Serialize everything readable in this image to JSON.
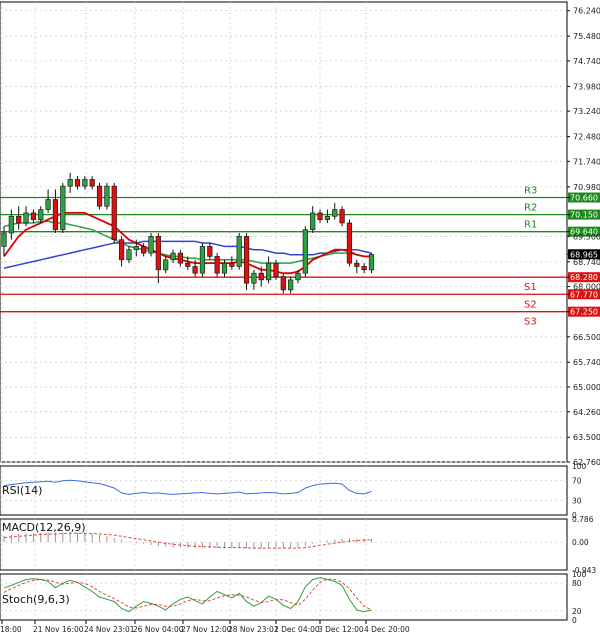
{
  "chart_data": {
    "type": "candlestick",
    "main_panel": {
      "ylim": [
        62.76,
        76.5
      ],
      "y_ticks": [
        "76.240",
        "75.480",
        "74.740",
        "73.980",
        "73.240",
        "72.480",
        "71.740",
        "70.980",
        "70.660",
        "70.150",
        "69.640",
        "69.500",
        "68.965",
        "68.740",
        "68.280",
        "68.000",
        "67.770",
        "67.250",
        "66.500",
        "65.740",
        "65.000",
        "64.260",
        "63.500",
        "62.760"
      ],
      "last_price": 68.965,
      "levels": [
        {
          "label": "R3",
          "value": 70.66,
          "kind": "resistance"
        },
        {
          "label": "R2",
          "value": 70.15,
          "kind": "resistance"
        },
        {
          "label": "R1",
          "value": 69.64,
          "kind": "resistance"
        },
        {
          "label": "S1",
          "value": 68.28,
          "kind": "support"
        },
        {
          "label": "S2",
          "value": 67.77,
          "kind": "support"
        },
        {
          "label": "S3",
          "value": 67.25,
          "kind": "support"
        }
      ],
      "candles": [
        {
          "o": 69.2,
          "h": 69.8,
          "l": 68.9,
          "c": 69.6
        },
        {
          "o": 69.6,
          "h": 70.3,
          "l": 69.4,
          "c": 70.1
        },
        {
          "o": 70.1,
          "h": 70.4,
          "l": 69.7,
          "c": 69.9
        },
        {
          "o": 69.9,
          "h": 70.4,
          "l": 69.8,
          "c": 70.2
        },
        {
          "o": 70.2,
          "h": 70.3,
          "l": 69.9,
          "c": 70.0
        },
        {
          "o": 70.0,
          "h": 70.4,
          "l": 69.9,
          "c": 70.3
        },
        {
          "o": 70.3,
          "h": 70.9,
          "l": 70.2,
          "c": 70.6
        },
        {
          "o": 70.6,
          "h": 70.9,
          "l": 69.6,
          "c": 69.7
        },
        {
          "o": 69.7,
          "h": 71.1,
          "l": 69.6,
          "c": 71.0
        },
        {
          "o": 71.0,
          "h": 71.4,
          "l": 70.8,
          "c": 71.2
        },
        {
          "o": 71.2,
          "h": 71.3,
          "l": 70.9,
          "c": 71.0
        },
        {
          "o": 71.0,
          "h": 71.3,
          "l": 70.9,
          "c": 71.2
        },
        {
          "o": 71.2,
          "h": 71.3,
          "l": 70.9,
          "c": 71.0
        },
        {
          "o": 71.0,
          "h": 71.1,
          "l": 70.3,
          "c": 70.4
        },
        {
          "o": 70.4,
          "h": 71.1,
          "l": 70.3,
          "c": 71.0
        },
        {
          "o": 71.0,
          "h": 71.1,
          "l": 69.3,
          "c": 69.4
        },
        {
          "o": 69.4,
          "h": 69.5,
          "l": 68.6,
          "c": 68.8
        },
        {
          "o": 68.8,
          "h": 69.2,
          "l": 68.7,
          "c": 69.1
        },
        {
          "o": 69.1,
          "h": 69.4,
          "l": 68.9,
          "c": 69.2
        },
        {
          "o": 69.2,
          "h": 69.3,
          "l": 68.9,
          "c": 69.0
        },
        {
          "o": 69.0,
          "h": 69.6,
          "l": 68.9,
          "c": 69.5
        },
        {
          "o": 69.5,
          "h": 69.6,
          "l": 68.1,
          "c": 68.5
        },
        {
          "o": 68.5,
          "h": 68.9,
          "l": 68.4,
          "c": 68.8
        },
        {
          "o": 68.8,
          "h": 69.1,
          "l": 68.7,
          "c": 69.0
        },
        {
          "o": 69.0,
          "h": 69.1,
          "l": 68.6,
          "c": 68.7
        },
        {
          "o": 68.7,
          "h": 68.9,
          "l": 68.5,
          "c": 68.6
        },
        {
          "o": 68.6,
          "h": 68.8,
          "l": 68.3,
          "c": 68.4
        },
        {
          "o": 68.4,
          "h": 69.3,
          "l": 68.3,
          "c": 69.2
        },
        {
          "o": 69.2,
          "h": 69.3,
          "l": 68.8,
          "c": 68.9
        },
        {
          "o": 68.9,
          "h": 69.0,
          "l": 68.3,
          "c": 68.4
        },
        {
          "o": 68.4,
          "h": 68.8,
          "l": 68.3,
          "c": 68.7
        },
        {
          "o": 68.7,
          "h": 68.9,
          "l": 68.5,
          "c": 68.6
        },
        {
          "o": 68.6,
          "h": 69.6,
          "l": 68.5,
          "c": 69.5
        },
        {
          "o": 69.5,
          "h": 69.6,
          "l": 67.9,
          "c": 68.1
        },
        {
          "o": 68.1,
          "h": 68.5,
          "l": 67.9,
          "c": 68.4
        },
        {
          "o": 68.4,
          "h": 68.6,
          "l": 68.0,
          "c": 68.2
        },
        {
          "o": 68.2,
          "h": 68.9,
          "l": 68.1,
          "c": 68.7
        },
        {
          "o": 68.7,
          "h": 68.8,
          "l": 68.2,
          "c": 68.3
        },
        {
          "o": 68.3,
          "h": 68.4,
          "l": 67.8,
          "c": 67.9
        },
        {
          "o": 67.9,
          "h": 68.3,
          "l": 67.8,
          "c": 68.2
        },
        {
          "o": 68.2,
          "h": 68.5,
          "l": 68.1,
          "c": 68.4
        },
        {
          "o": 68.4,
          "h": 69.8,
          "l": 68.3,
          "c": 69.7
        },
        {
          "o": 69.7,
          "h": 70.4,
          "l": 69.6,
          "c": 70.2
        },
        {
          "o": 70.2,
          "h": 70.3,
          "l": 69.9,
          "c": 70.0
        },
        {
          "o": 70.0,
          "h": 70.3,
          "l": 69.9,
          "c": 70.1
        },
        {
          "o": 70.1,
          "h": 70.5,
          "l": 70.0,
          "c": 70.3
        },
        {
          "o": 70.3,
          "h": 70.4,
          "l": 69.8,
          "c": 69.9
        },
        {
          "o": 69.9,
          "h": 70.0,
          "l": 68.6,
          "c": 68.7
        },
        {
          "o": 68.7,
          "h": 68.8,
          "l": 68.4,
          "c": 68.6
        },
        {
          "o": 68.6,
          "h": 68.7,
          "l": 68.4,
          "c": 68.5
        },
        {
          "o": 68.5,
          "h": 69.0,
          "l": 68.4,
          "c": 68.96
        }
      ],
      "ma_fast_color": "#dd0000",
      "ma_slow_color": "#3344cc",
      "ma_mid_color": "#2ea043",
      "ma_fast": [
        68.9,
        69.2,
        69.5,
        69.7,
        69.8,
        69.9,
        70.0,
        70.1,
        70.2,
        70.2,
        70.2,
        70.2,
        70.1,
        70.0,
        69.9,
        69.8,
        69.6,
        69.4,
        69.3,
        69.2,
        69.1,
        69.0,
        68.9,
        68.85,
        68.8,
        68.75,
        68.7,
        68.7,
        68.7,
        68.7,
        68.7,
        68.7,
        68.75,
        68.7,
        68.6,
        68.5,
        68.5,
        68.45,
        68.4,
        68.4,
        68.45,
        68.6,
        68.8,
        68.9,
        69.0,
        69.1,
        69.1,
        69.05,
        68.95,
        68.9,
        68.9
      ],
      "ma_slow": [
        68.55,
        68.6,
        68.65,
        68.7,
        68.75,
        68.8,
        68.85,
        68.9,
        68.95,
        69.0,
        69.05,
        69.1,
        69.15,
        69.2,
        69.25,
        69.3,
        69.3,
        69.3,
        69.3,
        69.35,
        69.35,
        69.35,
        69.35,
        69.35,
        69.35,
        69.35,
        69.35,
        69.3,
        69.3,
        69.25,
        69.2,
        69.2,
        69.2,
        69.15,
        69.1,
        69.1,
        69.05,
        69.0,
        69.0,
        68.95,
        68.95,
        68.95,
        68.95,
        69.0,
        69.0,
        69.05,
        69.1,
        69.1,
        69.1,
        69.05,
        69.0
      ],
      "ma_mid": [
        69.8,
        69.85,
        69.9,
        69.9,
        69.9,
        69.95,
        69.95,
        69.9,
        69.9,
        69.85,
        69.8,
        69.75,
        69.7,
        69.6,
        69.5,
        69.4,
        69.3,
        69.2,
        69.15,
        69.1,
        69.05,
        69.0,
        68.95,
        68.9,
        68.9,
        68.85,
        68.85,
        68.8,
        68.8,
        68.8,
        68.8,
        68.8,
        68.8,
        68.8,
        68.75,
        68.7,
        68.7,
        68.7,
        68.7,
        68.7,
        68.75,
        68.8,
        68.85,
        68.9,
        68.95,
        69.0,
        69.0,
        69.0,
        68.95,
        68.9,
        68.9
      ]
    },
    "rsi": {
      "label": "RSI(14)",
      "ticks": [
        "100",
        "70",
        "30",
        "0"
      ],
      "ylim": [
        0,
        100
      ],
      "color": "#3b6fe0",
      "values": [
        60,
        62,
        64,
        66,
        67,
        68,
        69,
        67,
        70,
        71,
        70,
        68,
        66,
        64,
        60,
        55,
        45,
        42,
        44,
        46,
        44,
        45,
        43,
        42,
        43,
        44,
        45,
        46,
        44,
        43,
        44,
        45,
        47,
        43,
        44,
        45,
        46,
        45,
        43,
        44,
        46,
        55,
        60,
        63,
        64,
        65,
        63,
        50,
        44,
        43,
        48
      ]
    },
    "macd": {
      "label": "MACD(12,26,9)",
      "ticks": [
        "0.786",
        "0.00",
        "-0.943"
      ],
      "ylim": [
        -0.943,
        0.786
      ],
      "histogram_color": "#999999",
      "signal_color": "#e24a3a",
      "histogram": [
        0.22,
        0.25,
        0.28,
        0.3,
        0.31,
        0.32,
        0.33,
        0.32,
        0.33,
        0.34,
        0.33,
        0.31,
        0.28,
        0.24,
        0.2,
        0.14,
        0.08,
        0.02,
        -0.03,
        -0.07,
        -0.1,
        -0.13,
        -0.15,
        -0.17,
        -0.18,
        -0.19,
        -0.2,
        -0.2,
        -0.2,
        -0.21,
        -0.21,
        -0.21,
        -0.2,
        -0.21,
        -0.22,
        -0.22,
        -0.21,
        -0.21,
        -0.21,
        -0.2,
        -0.18,
        -0.12,
        -0.05,
        0.02,
        0.06,
        0.09,
        0.12,
        0.13,
        0.12,
        0.11,
        0.11
      ],
      "signal": [
        0.16,
        0.18,
        0.2,
        0.22,
        0.24,
        0.26,
        0.27,
        0.28,
        0.29,
        0.3,
        0.3,
        0.3,
        0.29,
        0.28,
        0.26,
        0.24,
        0.2,
        0.16,
        0.12,
        0.08,
        0.04,
        0.0,
        -0.04,
        -0.07,
        -0.1,
        -0.12,
        -0.14,
        -0.15,
        -0.16,
        -0.17,
        -0.18,
        -0.18,
        -0.19,
        -0.19,
        -0.2,
        -0.2,
        -0.2,
        -0.2,
        -0.2,
        -0.2,
        -0.2,
        -0.18,
        -0.15,
        -0.11,
        -0.07,
        -0.03,
        0.0,
        0.03,
        0.05,
        0.07,
        0.08
      ]
    },
    "stochastic": {
      "label": "Stoch(9,6,3)",
      "ticks": [
        "100",
        "80",
        "20",
        "0"
      ],
      "ylim": [
        0,
        100
      ],
      "k_color": "#2ea043",
      "d_color": "#e24a3a",
      "k": [
        70,
        75,
        82,
        88,
        90,
        88,
        84,
        70,
        80,
        86,
        82,
        72,
        62,
        50,
        45,
        40,
        25,
        18,
        30,
        40,
        36,
        30,
        22,
        35,
        45,
        50,
        42,
        35,
        50,
        62,
        55,
        48,
        58,
        40,
        30,
        38,
        52,
        45,
        32,
        25,
        40,
        72,
        88,
        92,
        88,
        84,
        75,
        45,
        22,
        18,
        22
      ],
      "d": [
        60,
        68,
        75,
        82,
        86,
        88,
        87,
        82,
        78,
        80,
        82,
        80,
        72,
        62,
        54,
        46,
        38,
        28,
        26,
        30,
        34,
        34,
        30,
        30,
        35,
        42,
        45,
        42,
        42,
        48,
        53,
        55,
        54,
        50,
        43,
        38,
        40,
        45,
        44,
        38,
        32,
        45,
        65,
        82,
        89,
        88,
        82,
        68,
        48,
        30,
        22
      ]
    },
    "x_tick_labels": [
      "18:00",
      "21 Nov 16:00",
      "24 Nov 23:01",
      "26 Nov 04:00",
      "27 Nov 12:00",
      "28 Nov 23:01",
      "2 Dec 04:00",
      "3 Dec 12:00",
      "4 Dec 20:00"
    ]
  }
}
